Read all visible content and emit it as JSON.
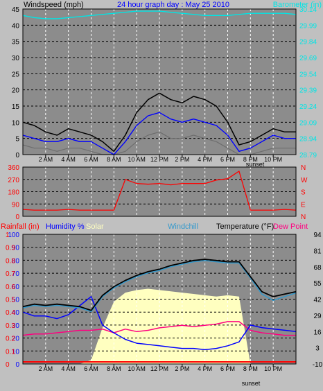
{
  "colors": {
    "windspeed": "#000000",
    "gust": "#000000",
    "wind_avg": "#0000ff",
    "wind_low": "#6e6e6e",
    "barometer": "#00e5e5",
    "direction": "#ff0000",
    "temperature": "#000000",
    "windchill": "#3399cc",
    "dewpoint": "#ff0080",
    "humidity": "#0000ff",
    "solar": "#ffffc0",
    "rainfall": "#ff0000",
    "plot_bg": "#8c8c8c"
  },
  "chart_data": [
    {
      "type": "line",
      "title": "24 hour graph day : May 25 2010",
      "left_axis_label": "Windspeed (mph)",
      "right_axis_label": "Barometer (in)",
      "ylim": [
        0,
        45
      ],
      "y_ticks": [
        0,
        5,
        10,
        15,
        20,
        25,
        30,
        35,
        40,
        45
      ],
      "y2lim": [
        28.79,
        30.14
      ],
      "y2_ticks": [
        "28.79",
        "28.94",
        "29.09",
        "29.24",
        "29.39",
        "29.54",
        "29.69",
        "29.84",
        "29.99",
        "30.14"
      ],
      "x_ticks": [
        "2 AM",
        "4 AM",
        "6 AM",
        "8 AM",
        "10 AM",
        "12 PM",
        "2 PM",
        "4 PM",
        "6 PM",
        "8 PM",
        "10 PM"
      ],
      "x_annotation": "sunset",
      "grid": true,
      "x_hours": [
        0,
        1,
        2,
        3,
        4,
        5,
        6,
        7,
        8,
        9,
        10,
        11,
        12,
        13,
        14,
        15,
        16,
        17,
        18,
        19,
        20,
        21,
        22,
        23,
        24
      ],
      "series": [
        {
          "key": "wind_high",
          "values": [
            10,
            9,
            7,
            6,
            8,
            7,
            6,
            4,
            1,
            6,
            13,
            17,
            19,
            17,
            16,
            18,
            17,
            15,
            10,
            3,
            4,
            6,
            8,
            7,
            7
          ]
        },
        {
          "key": "wind_avg",
          "values": [
            6,
            5,
            4,
            4,
            5,
            4,
            4,
            2,
            0,
            4,
            9,
            12,
            13,
            11,
            10,
            11,
            10,
            9,
            6,
            1,
            2,
            4,
            6,
            5,
            5
          ]
        },
        {
          "key": "wind_low",
          "values": [
            3,
            2,
            2,
            1,
            2,
            2,
            1,
            0,
            0,
            1,
            4,
            6,
            7,
            5,
            5,
            6,
            5,
            4,
            2,
            0,
            0,
            1,
            2,
            2,
            2
          ]
        },
        {
          "key": "barometer",
          "values": [
            30.08,
            30.06,
            30.05,
            30.05,
            30.06,
            30.07,
            30.08,
            30.09,
            30.1,
            30.11,
            30.12,
            30.12,
            30.12,
            30.11,
            30.1,
            30.09,
            30.08,
            30.08,
            30.08,
            30.09,
            30.1,
            30.1,
            30.1,
            30.1,
            30.09
          ]
        }
      ]
    },
    {
      "type": "line",
      "ylim": [
        0,
        360
      ],
      "y_ticks": [
        0,
        90,
        180,
        270,
        360
      ],
      "y2_ticks": [
        "N",
        "E",
        "S",
        "W",
        "N"
      ],
      "x_hours": [
        0,
        1,
        2,
        3,
        4,
        5,
        6,
        7,
        8,
        9,
        10,
        11,
        12,
        13,
        14,
        15,
        16,
        17,
        18,
        19,
        20,
        21,
        22,
        23,
        24
      ],
      "series": [
        {
          "key": "direction",
          "values": [
            50,
            45,
            45,
            45,
            50,
            45,
            45,
            45,
            45,
            270,
            240,
            235,
            240,
            230,
            240,
            240,
            240,
            265,
            275,
            330,
            45,
            45,
            45,
            50,
            45
          ]
        }
      ]
    },
    {
      "type": "line",
      "labels": {
        "rainfall": "Rainfall (in)",
        "humidity": "Humidity %",
        "solar": "Solar",
        "windchill": "Windchill",
        "temperature": "Temperature (°F)",
        "dewpoint": "Dew Point"
      },
      "x_annotation": "sunset",
      "ylim": [
        0,
        100
      ],
      "y_ticks": [
        0,
        10,
        20,
        30,
        40,
        50,
        60,
        70,
        80,
        90,
        100
      ],
      "rain_ticks": [
        "0",
        "0.1",
        "0.2",
        "0.3",
        "0.4",
        "0.5",
        "0.6",
        "0.7",
        "0.8",
        "0.9",
        "1"
      ],
      "temp_lim": [
        -10,
        94
      ],
      "temp_ticks": [
        -10,
        3,
        16,
        29,
        42,
        55,
        68,
        81,
        94
      ],
      "x_hours": [
        0,
        1,
        2,
        3,
        4,
        5,
        6,
        7,
        8,
        9,
        10,
        11,
        12,
        13,
        14,
        15,
        16,
        17,
        18,
        19,
        20,
        21,
        22,
        23,
        24
      ],
      "series": [
        {
          "key": "temperature",
          "values": [
            36,
            38,
            37,
            38,
            37,
            36,
            33,
            45,
            52,
            57,
            61,
            64,
            66,
            69,
            71,
            73,
            74,
            73,
            72,
            72,
            60,
            48,
            44,
            46,
            48
          ]
        },
        {
          "key": "windchill",
          "values": [
            35,
            37,
            36,
            37,
            36,
            35,
            32,
            44,
            51,
            56,
            60,
            63,
            65,
            68,
            70,
            72,
            73,
            72,
            71,
            71,
            59,
            46,
            41,
            44,
            47
          ]
        },
        {
          "key": "dewpoint",
          "values": [
            13,
            14,
            14,
            15,
            16,
            17,
            17,
            18,
            15,
            18,
            16,
            17,
            19,
            20,
            21,
            20,
            21,
            22,
            24,
            24,
            17,
            15,
            14,
            13,
            13
          ]
        },
        {
          "key": "humidity",
          "values": [
            40,
            37,
            37,
            35,
            38,
            45,
            52,
            30,
            24,
            19,
            16,
            15,
            14,
            13,
            12,
            12,
            11,
            12,
            14,
            17,
            30,
            28,
            27,
            26,
            25
          ]
        },
        {
          "key": "solar",
          "values": [
            0,
            0,
            0,
            0,
            0,
            0,
            3,
            28,
            48,
            55,
            57,
            58,
            57,
            56,
            55,
            54,
            53,
            52,
            53,
            52,
            0,
            0,
            0,
            0,
            0
          ]
        },
        {
          "key": "rainfall",
          "values": [
            0,
            0,
            0,
            0,
            0,
            0,
            0,
            0,
            0,
            0,
            0,
            0,
            0,
            0,
            0,
            0,
            0,
            0,
            0,
            0,
            0,
            0,
            0,
            0,
            0
          ]
        }
      ]
    }
  ]
}
